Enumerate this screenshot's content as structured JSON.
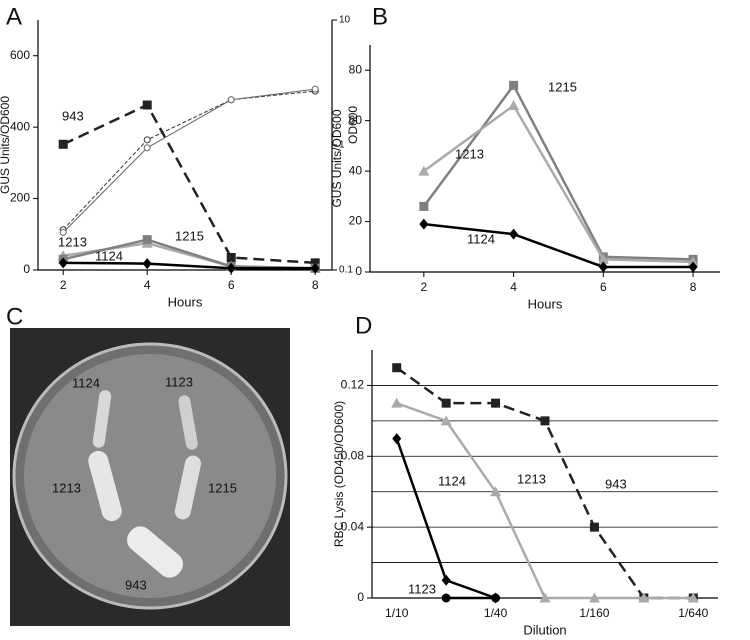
{
  "chart_data": [
    {
      "type": "line",
      "panel": "A",
      "xlabel": "Hours",
      "ylabel": "GUS Units/OD600",
      "y2label": "OD600",
      "x": [
        2,
        4,
        6,
        8
      ],
      "xlim": [
        1.4,
        8.4
      ],
      "xticks": [
        2,
        4,
        6,
        8
      ],
      "ylim": [
        0,
        700
      ],
      "yticks": [
        0,
        200,
        400,
        600
      ],
      "y2lim": [
        0.1,
        10
      ],
      "y2ticks": [
        0.1,
        1,
        10
      ],
      "y2log": true,
      "series": [
        {
          "name": "943",
          "color": "#222222",
          "dash": true,
          "marker": "square",
          "values": [
            352,
            462,
            35,
            20
          ]
        },
        {
          "name": "1213",
          "color": "#aaaaaa",
          "dash": false,
          "marker": "triangle",
          "values": [
            40,
            75,
            10,
            5
          ]
        },
        {
          "name": "1215",
          "color": "#808080",
          "dash": false,
          "marker": "square",
          "values": [
            30,
            85,
            10,
            5
          ]
        },
        {
          "name": "1124",
          "color": "#000000",
          "dash": false,
          "marker": "diamond",
          "values": [
            20,
            18,
            5,
            5
          ]
        },
        {
          "color": "#333333",
          "dash": true,
          "marker": "circle-open",
          "axis": "y2",
          "values": [
            0.21,
            1.1,
            2.3,
            2.7
          ]
        },
        {
          "color": "#666666",
          "dash": false,
          "marker": "circle-open",
          "axis": "y2",
          "values": [
            0.2,
            0.95,
            2.3,
            2.8
          ]
        }
      ]
    },
    {
      "type": "line",
      "panel": "B",
      "xlabel": "Hours",
      "ylabel": "GUS Units/OD600",
      "x": [
        2,
        4,
        6,
        8
      ],
      "xlim": [
        0.8,
        8.6
      ],
      "xticks": [
        2,
        4,
        6,
        8
      ],
      "ylim": [
        0,
        90
      ],
      "yticks": [
        0,
        20,
        40,
        60,
        80
      ],
      "series": [
        {
          "name": "1215",
          "color": "#808080",
          "dash": false,
          "marker": "square",
          "values": [
            26,
            74,
            6,
            5
          ]
        },
        {
          "name": "1213",
          "color": "#aaaaaa",
          "dash": false,
          "marker": "triangle",
          "values": [
            40,
            66,
            5,
            4
          ]
        },
        {
          "name": "1124",
          "color": "#000000",
          "dash": false,
          "marker": "diamond",
          "values": [
            19,
            15,
            2,
            2
          ]
        }
      ]
    },
    {
      "type": "line",
      "panel": "D",
      "xlabel": "Dilution",
      "ylabel": "RBC Lysis (OD450/OD600)",
      "categories": [
        "1/10",
        null,
        "1/40",
        null,
        "1/160",
        null,
        "1/640"
      ],
      "ylim": [
        0,
        0.14
      ],
      "yticks": [
        0,
        0.04,
        0.08,
        0.12
      ],
      "minor_grid": [
        0.02,
        0.06,
        0.1
      ],
      "grid": true,
      "series": [
        {
          "name": "943",
          "color": "#222222",
          "dash": true,
          "marker": "square",
          "values": [
            0.13,
            0.11,
            0.11,
            0.1,
            0.04,
            0,
            0
          ]
        },
        {
          "name": "1213",
          "color": "#aaaaaa",
          "dash": false,
          "marker": "triangle",
          "values": [
            0.11,
            0.1,
            0.06,
            0,
            0,
            0,
            0
          ]
        },
        {
          "name": "1124",
          "color": "#000000",
          "dash": false,
          "marker": "diamond",
          "values": [
            0.09,
            0.01,
            0,
            null,
            null,
            null,
            null
          ]
        },
        {
          "name": "1123",
          "color": "#000000",
          "dash": false,
          "marker": "circle",
          "values": [
            null,
            0,
            0,
            null,
            null,
            null,
            null
          ]
        }
      ]
    }
  ],
  "plate": {
    "panel": "C",
    "labels": [
      "1124",
      "1123",
      "1213",
      "1215",
      "943"
    ]
  }
}
